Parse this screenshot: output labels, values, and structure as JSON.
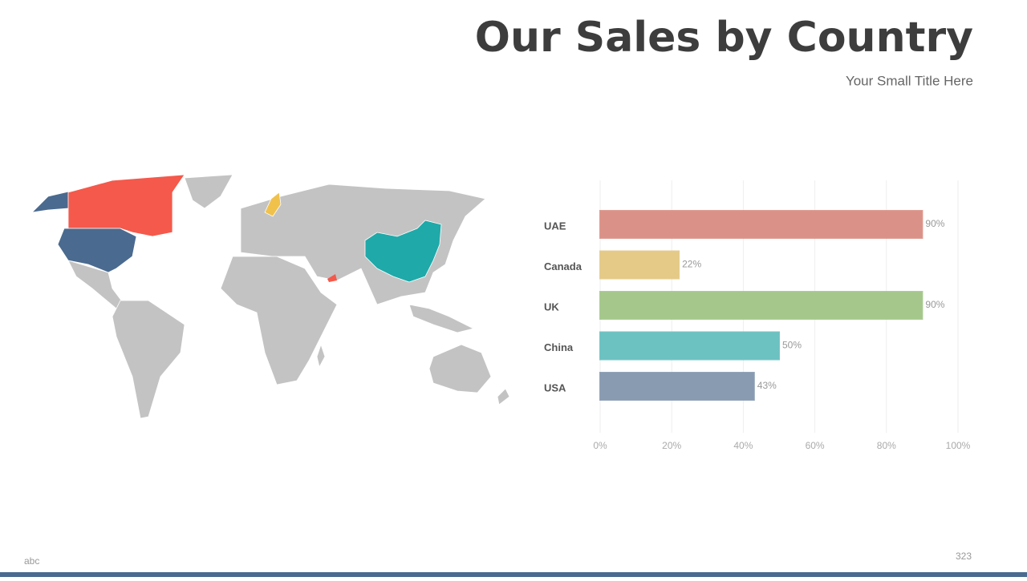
{
  "title": "Our Sales by Country",
  "subtitle": "Your Small Title Here",
  "chart_data": {
    "type": "bar",
    "categories": [
      "UAE",
      "Canada",
      "UK",
      "China",
      "USA"
    ],
    "values": [
      90,
      22,
      90,
      50,
      43
    ],
    "value_labels": [
      "90%",
      "22%",
      "90%",
      "50%",
      "43%"
    ],
    "colors": [
      "#e59a8f",
      "#f0d48e",
      "#aed193",
      "#72cbcb",
      "#8fa3ba"
    ],
    "xlim": [
      0,
      100
    ],
    "xticks": [
      {
        "value": 0,
        "label": "0%"
      },
      {
        "value": 20,
        "label": "20%"
      },
      {
        "value": 40,
        "label": "40%"
      },
      {
        "value": 60,
        "label": "60%"
      },
      {
        "value": 80,
        "label": "80%"
      },
      {
        "value": 100,
        "label": "100%"
      }
    ],
    "grid": true
  },
  "footer": {
    "left": "abc",
    "page": "323"
  }
}
